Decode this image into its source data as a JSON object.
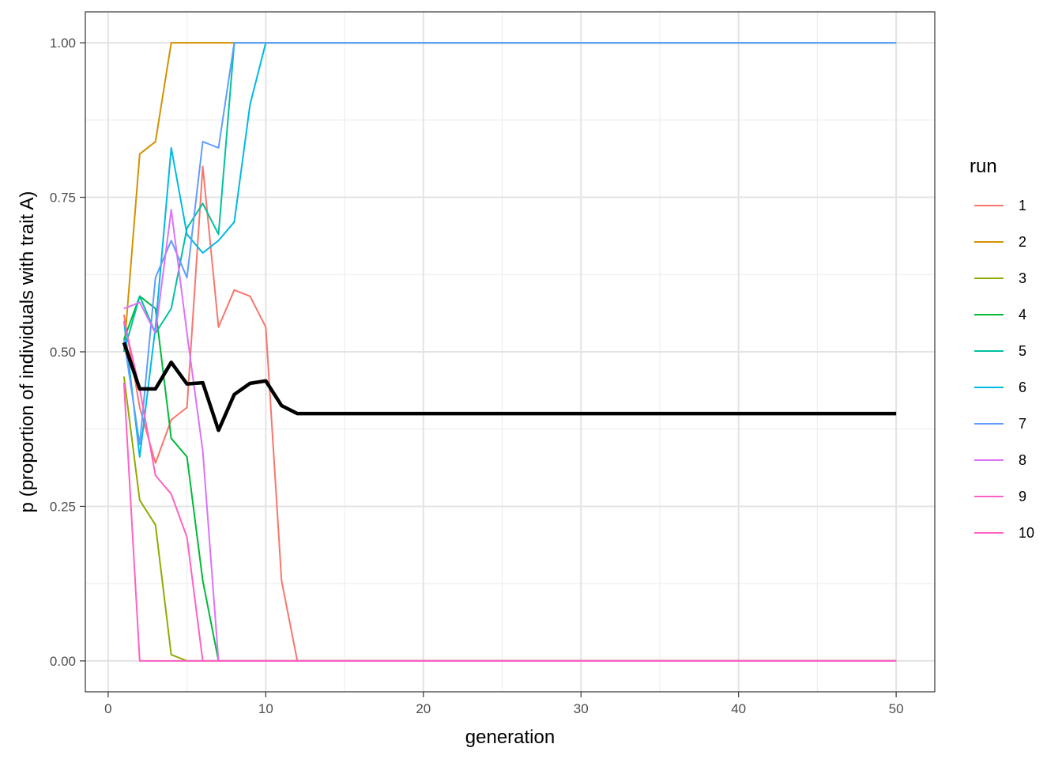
{
  "chart_data": {
    "type": "line",
    "xlabel": "generation",
    "ylabel": "p (proportion of individuals with trait A)",
    "xlim": [
      -1.45,
      52.45
    ],
    "ylim": [
      -0.05,
      1.05
    ],
    "x_ticks": [
      0,
      10,
      20,
      30,
      40,
      50
    ],
    "y_ticks": [
      0,
      0.25,
      0.5,
      0.75,
      1.0
    ],
    "x_tick_labels": [
      "0",
      "10",
      "20",
      "30",
      "40",
      "50"
    ],
    "y_tick_labels": [
      "0.00",
      "0.25",
      "0.50",
      "0.75",
      "1.00"
    ],
    "grid": true,
    "legend": {
      "title": "run",
      "position": "right"
    },
    "x_max": 50,
    "series": [
      {
        "name": "1",
        "color": "#F8766D",
        "values": [
          0.56,
          0.41,
          0.32,
          0.39,
          0.41,
          0.8,
          0.54,
          0.6,
          0.59,
          0.54,
          0.13,
          0.0
        ]
      },
      {
        "name": "2",
        "color": "#D39200",
        "values": [
          0.5,
          0.82,
          0.84,
          1.0
        ]
      },
      {
        "name": "3",
        "color": "#93AA00",
        "values": [
          0.46,
          0.26,
          0.22,
          0.01,
          0.0
        ]
      },
      {
        "name": "4",
        "color": "#00BA38",
        "values": [
          0.52,
          0.59,
          0.57,
          0.36,
          0.33,
          0.13,
          0.0
        ]
      },
      {
        "name": "5",
        "color": "#00C19F",
        "values": [
          0.5,
          0.59,
          0.53,
          0.57,
          0.7,
          0.74,
          0.69,
          1.0
        ]
      },
      {
        "name": "6",
        "color": "#00B9E3",
        "values": [
          0.55,
          0.33,
          0.54,
          0.83,
          0.69,
          0.66,
          0.68,
          0.71,
          0.9,
          1.0
        ]
      },
      {
        "name": "7",
        "color": "#619CFF",
        "values": [
          0.52,
          0.35,
          0.62,
          0.68,
          0.62,
          0.84,
          0.83,
          1.0
        ]
      },
      {
        "name": "8",
        "color": "#DB72FB",
        "values": [
          0.57,
          0.58,
          0.53,
          0.73,
          0.53,
          0.34,
          0.0
        ]
      },
      {
        "name": "9",
        "color": "#FF61C3",
        "values": [
          0.45,
          0.0
        ]
      },
      {
        "name": "10",
        "color": "#FF61C3",
        "values": [
          0.55,
          0.44,
          0.3,
          0.27,
          0.2,
          0.0
        ]
      }
    ],
    "mean": {
      "color": "#000000",
      "values": [
        0.515,
        0.44,
        0.44,
        0.483,
        0.448,
        0.45,
        0.373,
        0.431,
        0.449,
        0.453,
        0.413,
        0.4
      ]
    }
  }
}
